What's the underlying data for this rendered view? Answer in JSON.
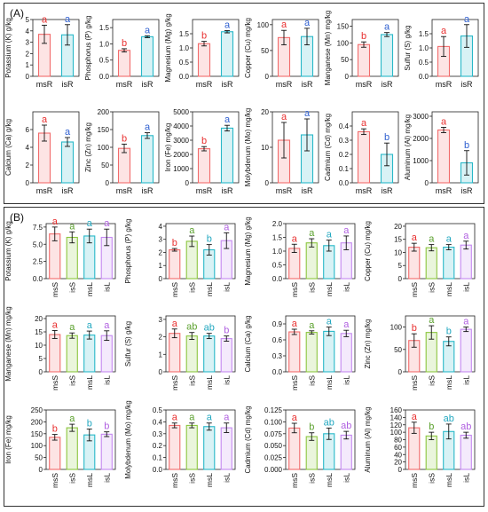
{
  "panels": [
    {
      "label": "(A)"
    },
    {
      "label": "(B)"
    }
  ],
  "colors": {
    "msR": "#f26b6b",
    "isR": "#28b8c8",
    "msS": "#f26b6b",
    "isS": "#8cc63f",
    "msL": "#28b8c8",
    "isL": "#c488f0",
    "letter_red": "#e83030",
    "letter_blue": "#3060d0",
    "letter_green": "#5aa02c",
    "letter_cyan": "#22a8c0",
    "letter_purple": "#b060e0"
  },
  "chart_data": [
    {
      "type": "bar",
      "panel": "A",
      "ylabel": "Potassium (K) g/kg",
      "categories": [
        "msR",
        "isR"
      ],
      "values": [
        3.7,
        3.65
      ],
      "errors": [
        0.8,
        0.9
      ],
      "letters": [
        "a",
        "a"
      ],
      "ylim": [
        0,
        5
      ],
      "yticks": [
        0,
        1,
        2,
        3,
        4,
        5
      ]
    },
    {
      "type": "bar",
      "panel": "A",
      "ylabel": "Phosphorus (P) g/kg",
      "categories": [
        "msR",
        "isR"
      ],
      "values": [
        0.8,
        1.22
      ],
      "errors": [
        0.05,
        0.03
      ],
      "letters": [
        "b",
        "a"
      ],
      "ylim": [
        0,
        1.75
      ],
      "yticks": [
        0.0,
        0.5,
        1.0,
        1.5
      ]
    },
    {
      "type": "bar",
      "panel": "A",
      "ylabel": "Magnesium (Mg) g/kg",
      "categories": [
        "msR",
        "isR"
      ],
      "values": [
        1.15,
        1.57
      ],
      "errors": [
        0.08,
        0.04
      ],
      "letters": [
        "b",
        "a"
      ],
      "ylim": [
        0,
        2.0
      ],
      "yticks": [
        0.0,
        0.5,
        1.0,
        1.5
      ]
    },
    {
      "type": "bar",
      "panel": "A",
      "ylabel": "Copper (Cu) mg/kg",
      "categories": [
        "msR",
        "isR"
      ],
      "values": [
        75,
        77
      ],
      "errors": [
        14,
        16
      ],
      "letters": [
        "a",
        "a"
      ],
      "ylim": [
        0,
        110
      ],
      "yticks": [
        0,
        50,
        100
      ]
    },
    {
      "type": "bar",
      "panel": "A",
      "ylabel": "Manganese (Mn) mg/kg",
      "categories": [
        "msR",
        "isR"
      ],
      "values": [
        95,
        125
      ],
      "errors": [
        8,
        6
      ],
      "letters": [
        "b",
        "a"
      ],
      "ylim": [
        0,
        170
      ],
      "yticks": [
        0,
        50,
        100,
        150
      ]
    },
    {
      "type": "bar",
      "panel": "A",
      "ylabel": "Sulfur (S) g/kg",
      "categories": [
        "msR",
        "isR"
      ],
      "values": [
        1.05,
        1.42
      ],
      "errors": [
        0.35,
        0.4
      ],
      "letters": [
        "a",
        "a"
      ],
      "ylim": [
        0,
        2.0
      ],
      "yticks": [
        0.0,
        0.5,
        1.0,
        1.5
      ]
    },
    {
      "type": "bar",
      "panel": "A",
      "ylabel": "Calcium (Ca) g/kg",
      "categories": [
        "msR",
        "isR"
      ],
      "values": [
        5.6,
        4.6
      ],
      "errors": [
        0.9,
        0.5
      ],
      "letters": [
        "a",
        "a"
      ],
      "ylim": [
        0,
        8
      ],
      "yticks": [
        0,
        2,
        4,
        6
      ]
    },
    {
      "type": "bar",
      "panel": "A",
      "ylabel": "Zinc (Zn) mg/kg",
      "categories": [
        "msR",
        "isR"
      ],
      "values": [
        97,
        133
      ],
      "errors": [
        12,
        8
      ],
      "letters": [
        "b",
        "a"
      ],
      "ylim": [
        0,
        200
      ],
      "yticks": [
        0,
        50,
        100,
        150,
        200
      ]
    },
    {
      "type": "bar",
      "panel": "A",
      "ylabel": "Iron (Fe) mg/kg",
      "categories": [
        "msR",
        "isR"
      ],
      "values": [
        2400,
        3850
      ],
      "errors": [
        150,
        200
      ],
      "letters": [
        "b",
        "a"
      ],
      "ylim": [
        0,
        5000
      ],
      "yticks": [
        0,
        1000,
        2000,
        3000,
        4000,
        5000
      ]
    },
    {
      "type": "bar",
      "panel": "A",
      "ylabel": "Molybdenum (Mo) mg/kg",
      "categories": [
        "msR",
        "isR"
      ],
      "values": [
        12,
        13.5
      ],
      "errors": [
        5,
        4.5
      ],
      "letters": [
        "a",
        "a"
      ],
      "ylim": [
        0,
        20
      ],
      "yticks": [
        0,
        10,
        20
      ]
    },
    {
      "type": "bar",
      "panel": "A",
      "ylabel": "Cadmium (Cd) mg/kg",
      "categories": [
        "msR",
        "isR"
      ],
      "values": [
        0.36,
        0.2
      ],
      "errors": [
        0.02,
        0.08
      ],
      "letters": [
        "a",
        "b"
      ],
      "ylim": [
        0,
        0.5
      ],
      "yticks": [
        0.0,
        0.1,
        0.2,
        0.3,
        0.4
      ]
    },
    {
      "type": "bar",
      "panel": "A",
      "ylabel": "Aluminum (Al) mg/kg",
      "categories": [
        "msR",
        "isR"
      ],
      "values": [
        2380,
        900
      ],
      "errors": [
        120,
        550
      ],
      "letters": [
        "a",
        "b"
      ],
      "ylim": [
        0,
        3200
      ],
      "yticks": [
        0,
        1000,
        2000,
        3000
      ]
    },
    {
      "type": "bar",
      "panel": "B",
      "ylabel": "Potassium (K) g/kg",
      "categories": [
        "msS",
        "isS",
        "msL",
        "isL"
      ],
      "values": [
        6.5,
        6.0,
        6.2,
        6.0
      ],
      "errors": [
        1.0,
        0.8,
        1.0,
        1.2
      ],
      "letters": [
        "a",
        "a",
        "a",
        "a"
      ],
      "ylim": [
        0,
        8
      ],
      "yticks": [
        0.0,
        2.5,
        5.0,
        7.5
      ]
    },
    {
      "type": "bar",
      "panel": "B",
      "ylabel": "Phosphorus (P) g/kg",
      "categories": [
        "msS",
        "isS",
        "msL",
        "isL"
      ],
      "values": [
        2.2,
        2.85,
        2.2,
        2.9
      ],
      "errors": [
        0.1,
        0.4,
        0.4,
        0.6
      ],
      "letters": [
        "b",
        "a",
        "b",
        "a"
      ],
      "ylim": [
        0,
        4.2
      ],
      "yticks": [
        0,
        1,
        2,
        3,
        4
      ]
    },
    {
      "type": "bar",
      "panel": "B",
      "ylabel": "Magnesium (Mg) g/kg",
      "categories": [
        "msS",
        "isS",
        "msL",
        "isL"
      ],
      "values": [
        1.1,
        1.3,
        1.2,
        1.3
      ],
      "errors": [
        0.15,
        0.15,
        0.2,
        0.25
      ],
      "letters": [
        "a",
        "a",
        "a",
        "a"
      ],
      "ylim": [
        0,
        2.0
      ],
      "yticks": [
        0.0,
        0.5,
        1.0,
        1.5,
        2.0
      ]
    },
    {
      "type": "bar",
      "panel": "B",
      "ylabel": "Copper (Cu) mg/kg",
      "categories": [
        "msS",
        "isS",
        "msL",
        "isL"
      ],
      "values": [
        12,
        11.8,
        12,
        12.8
      ],
      "errors": [
        1.5,
        1.2,
        1.0,
        1.5
      ],
      "letters": [
        "a",
        "a",
        "a",
        "a"
      ],
      "ylim": [
        0,
        21
      ],
      "yticks": [
        0,
        5,
        10,
        15,
        20
      ]
    },
    {
      "type": "bar",
      "panel": "B",
      "ylabel": "Manganese (Mn) mg/kg",
      "categories": [
        "msS",
        "isS",
        "msL",
        "isL"
      ],
      "values": [
        14,
        13.6,
        13.8,
        13.6
      ],
      "errors": [
        1.5,
        1.0,
        1.5,
        1.8
      ],
      "letters": [
        "a",
        "a",
        "a",
        "a"
      ],
      "ylim": [
        0,
        21
      ],
      "yticks": [
        0,
        5,
        10,
        15,
        20
      ]
    },
    {
      "type": "bar",
      "panel": "B",
      "ylabel": "Sulfur (S) g/kg",
      "categories": [
        "msS",
        "isS",
        "msL",
        "isL"
      ],
      "values": [
        2.2,
        2.05,
        2.05,
        1.9
      ],
      "errors": [
        0.25,
        0.2,
        0.15,
        0.15
      ],
      "letters": [
        "a",
        "ab",
        "ab",
        "b"
      ],
      "ylim": [
        0,
        3.2
      ],
      "yticks": [
        0,
        1,
        2,
        3
      ]
    },
    {
      "type": "bar",
      "panel": "B",
      "ylabel": "Calcium (Ca) g/kg",
      "categories": [
        "msS",
        "isS",
        "msL",
        "isL"
      ],
      "values": [
        0.75,
        0.74,
        0.76,
        0.72
      ],
      "errors": [
        0.05,
        0.03,
        0.08,
        0.06
      ],
      "letters": [
        "a",
        "a",
        "a",
        "a"
      ],
      "ylim": [
        0,
        1.05
      ],
      "yticks": [
        0.0,
        0.3,
        0.6,
        0.9
      ]
    },
    {
      "type": "bar",
      "panel": "B",
      "ylabel": "Zinc (Zn) mg/kg",
      "categories": [
        "msS",
        "isS",
        "msL",
        "isL"
      ],
      "values": [
        70,
        88,
        68,
        95
      ],
      "errors": [
        15,
        15,
        10,
        5
      ],
      "letters": [
        "b",
        "a",
        "b",
        "a"
      ],
      "ylim": [
        0,
        125
      ],
      "yticks": [
        0,
        50,
        100
      ]
    },
    {
      "type": "bar",
      "panel": "B",
      "ylabel": "Iron (Fe) mg/kg",
      "categories": [
        "msS",
        "isS",
        "msL",
        "isL"
      ],
      "values": [
        135,
        175,
        145,
        148
      ],
      "errors": [
        12,
        15,
        25,
        10
      ],
      "letters": [
        "b",
        "a",
        "b",
        "b"
      ],
      "ylim": [
        0,
        250
      ],
      "yticks": [
        0,
        50,
        100,
        150,
        200,
        250
      ]
    },
    {
      "type": "bar",
      "panel": "B",
      "ylabel": "Molybdenum (Mo) mg/kg",
      "categories": [
        "msS",
        "isS",
        "msL",
        "isL"
      ],
      "values": [
        0.37,
        0.37,
        0.36,
        0.35
      ],
      "errors": [
        0.02,
        0.02,
        0.03,
        0.04
      ],
      "letters": [
        "a",
        "a",
        "a",
        "a"
      ],
      "ylim": [
        0,
        0.5
      ],
      "yticks": [
        0.0,
        0.1,
        0.2,
        0.3,
        0.4,
        0.5
      ]
    },
    {
      "type": "bar",
      "panel": "B",
      "ylabel": "Cadmium (Cd) mg/kg",
      "categories": [
        "msS",
        "isS",
        "msL",
        "isL"
      ],
      "values": [
        0.087,
        0.069,
        0.075,
        0.072
      ],
      "errors": [
        0.01,
        0.008,
        0.012,
        0.008
      ],
      "letters": [
        "a",
        "b",
        "ab",
        "ab"
      ],
      "ylim": [
        0,
        0.125
      ],
      "yticks": [
        0.0,
        0.025,
        0.05,
        0.075,
        0.1,
        0.125
      ]
    },
    {
      "type": "bar",
      "panel": "B",
      "ylabel": "Aluminum (Al) mg/kg",
      "categories": [
        "msS",
        "isS",
        "msL",
        "isL"
      ],
      "values": [
        112,
        90,
        102,
        92
      ],
      "errors": [
        15,
        10,
        20,
        8
      ],
      "letters": [
        "a",
        "b",
        "ab",
        "ab"
      ],
      "ylim": [
        0,
        160
      ],
      "yticks": [
        0,
        20,
        40,
        60,
        80,
        100,
        120,
        140,
        160
      ]
    }
  ]
}
